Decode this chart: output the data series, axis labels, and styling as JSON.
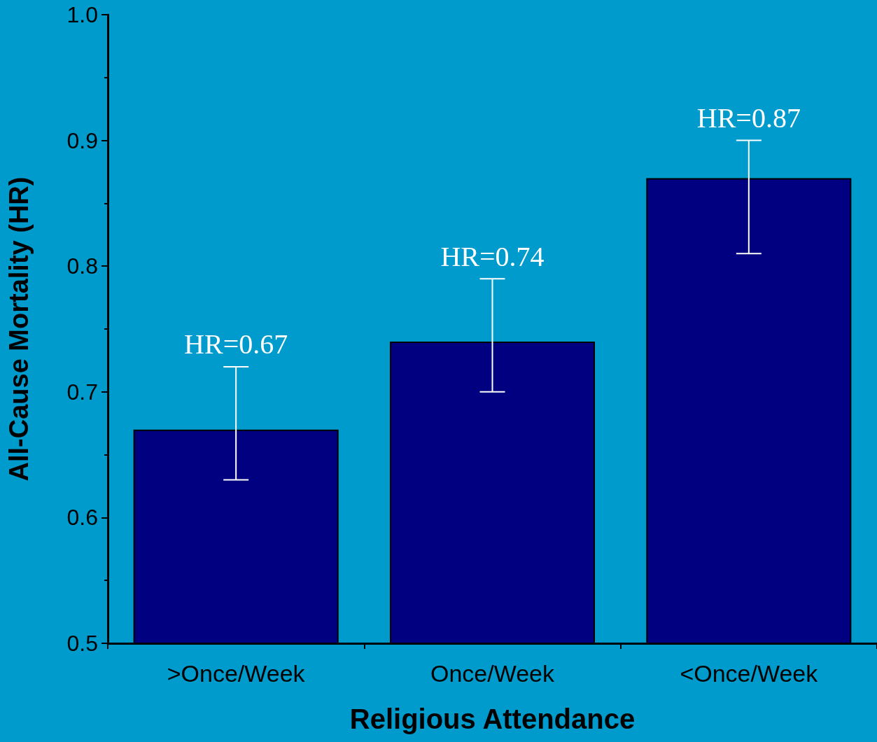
{
  "chart_data": {
    "type": "bar",
    "xlabel": "Religious Attendance",
    "ylabel": "All-Cause Mortality (HR)",
    "categories": [
      ">Once/Week",
      "Once/Week",
      "<Once/Week"
    ],
    "values": [
      0.67,
      0.74,
      0.87
    ],
    "errors": [
      [
        0.63,
        0.72
      ],
      [
        0.7,
        0.79
      ],
      [
        0.81,
        0.9
      ]
    ],
    "value_labels": [
      "HR=0.67",
      "HR=0.74",
      "HR=0.87"
    ],
    "color": "#000080",
    "ylim": [
      0.5,
      1.0
    ],
    "yticks": [
      0.5,
      0.6,
      0.7,
      0.8,
      0.9,
      {
        "value": 1,
        "label": "1.0"
      }
    ],
    "grid": false
  }
}
